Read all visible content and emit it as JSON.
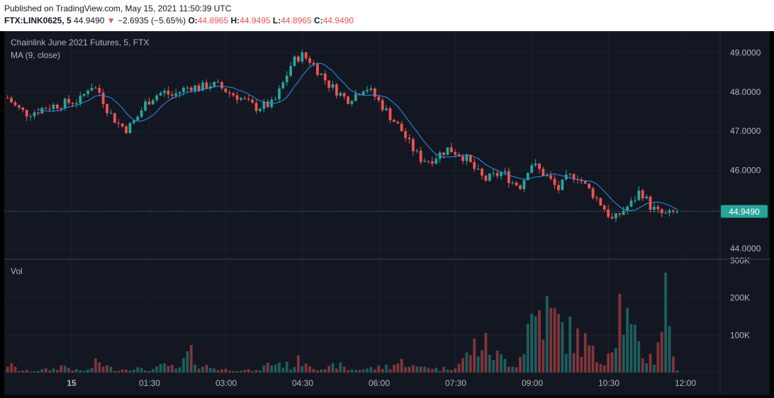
{
  "header": {
    "published": "Published on TradingView.com, May 15, 2021 11:50:39 UTC",
    "symbol": "FTX:LINK0625, 5",
    "last": "44.9490",
    "change_arrow": "▼",
    "change": "−2.6935 (−5.65%)",
    "o_label": "O:",
    "o_value": "44.8965",
    "h_label": "H:",
    "h_value": "44.9495",
    "l_label": "L:",
    "l_value": "44.8965",
    "c_label": "C:",
    "c_value": "44.9490"
  },
  "legend": {
    "title": "Chainlink June 2021 Futures, 5, FTX",
    "ma": "MA (9, close)",
    "vol": "Vol"
  },
  "colors": {
    "up": "#26a69a",
    "down": "#ef5350",
    "ma": "#2196f3",
    "price_tag": "#26a69a",
    "background": "#131722",
    "grid": "#1e222d"
  },
  "chart_data": {
    "type": "candlestick",
    "interval": "5",
    "price_axis": {
      "ticks": [
        "49.0000",
        "48.0000",
        "47.0000",
        "46.0000",
        "44.0000"
      ],
      "range": [
        43.8,
        49.5
      ],
      "last_label": "44.9490"
    },
    "volume_axis": {
      "ticks": [
        "300K",
        "200K",
        "100K"
      ],
      "range": [
        0,
        300000
      ]
    },
    "time_axis": {
      "labels": [
        "15",
        "01:30",
        "03:00",
        "04:30",
        "06:00",
        "07:30",
        "09:00",
        "10:30",
        "12:00"
      ]
    },
    "price_path": [
      47.85,
      47.6,
      47.45,
      47.5,
      47.6,
      47.65,
      47.7,
      47.75,
      47.8,
      48.2,
      48.0,
      47.5,
      47.2,
      47.05,
      47.3,
      47.7,
      47.9,
      48.0,
      47.9,
      48.05,
      48.15,
      48.1,
      48.2,
      48.15,
      48.0,
      47.9,
      47.75,
      47.6,
      47.65,
      47.7,
      48.2,
      48.75,
      48.95,
      48.8,
      48.5,
      48.2,
      48.0,
      47.8,
      47.95,
      48.15,
      47.9,
      47.6,
      47.3,
      47.0,
      46.6,
      46.3,
      46.25,
      46.4,
      46.55,
      46.45,
      46.3,
      46.0,
      45.75,
      45.85,
      45.95,
      45.7,
      45.6,
      46.2,
      46.0,
      45.8,
      45.5,
      45.8,
      45.9,
      45.6,
      45.35,
      45.05,
      44.7,
      44.95,
      45.15,
      45.5,
      45.1,
      44.9,
      44.85,
      44.95
    ],
    "volume_path": [
      30000,
      8000,
      5000,
      9000,
      12000,
      25000,
      8000,
      6000,
      40000,
      15000,
      10000,
      20000,
      8000,
      12000,
      30000,
      6000,
      70000,
      25000,
      18000,
      10000,
      12000,
      8000,
      6000,
      30000,
      35000,
      20000,
      50000,
      25000,
      8000,
      30000,
      10000,
      12000,
      15000,
      18000,
      28000,
      40000,
      15000,
      25000,
      10000,
      20000,
      35000,
      90000,
      100000,
      60000,
      40000,
      30000,
      180000,
      220000,
      190000,
      150000,
      120000,
      100000,
      40000,
      80000,
      250000,
      130000,
      60000,
      50000,
      270000,
      5000
    ],
    "candle_count": 176,
    "ma_period": 9
  }
}
